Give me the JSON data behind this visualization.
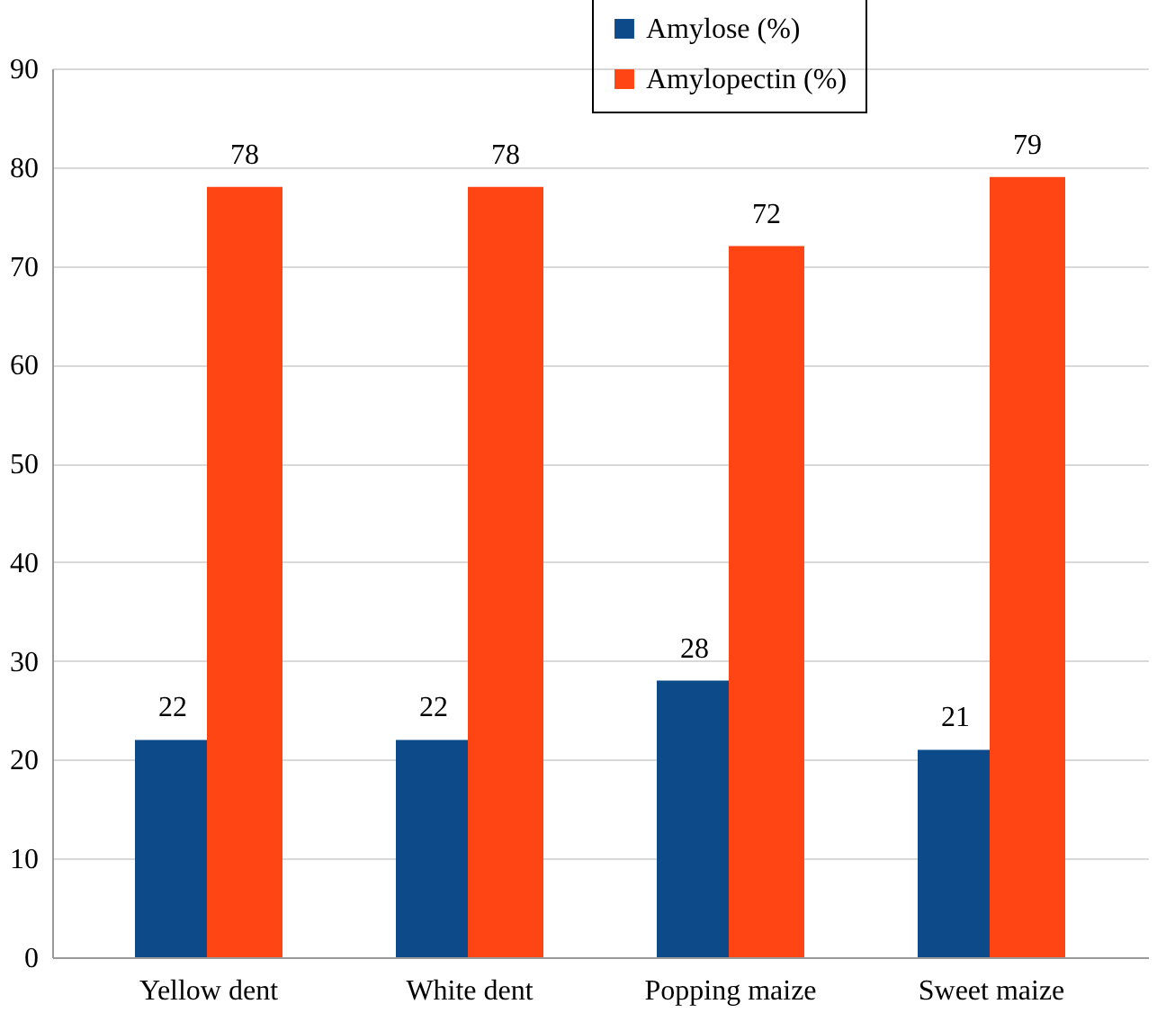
{
  "chart_data": {
    "type": "bar",
    "categories": [
      "Yellow dent",
      "White dent",
      "Popping maize",
      "Sweet maize"
    ],
    "series": [
      {
        "name": "Amylose (%)",
        "color": "#0d4a8a",
        "values": [
          22,
          22,
          28,
          21
        ]
      },
      {
        "name": "Amylopectin (%)",
        "color": "#ff4513",
        "values": [
          78,
          78,
          72,
          79
        ]
      }
    ],
    "ylim": [
      0,
      90
    ],
    "yticks": [
      0,
      10,
      20,
      30,
      40,
      50,
      60,
      70,
      80,
      90
    ],
    "grid": "y",
    "legend": "top right",
    "data_labels": true
  }
}
